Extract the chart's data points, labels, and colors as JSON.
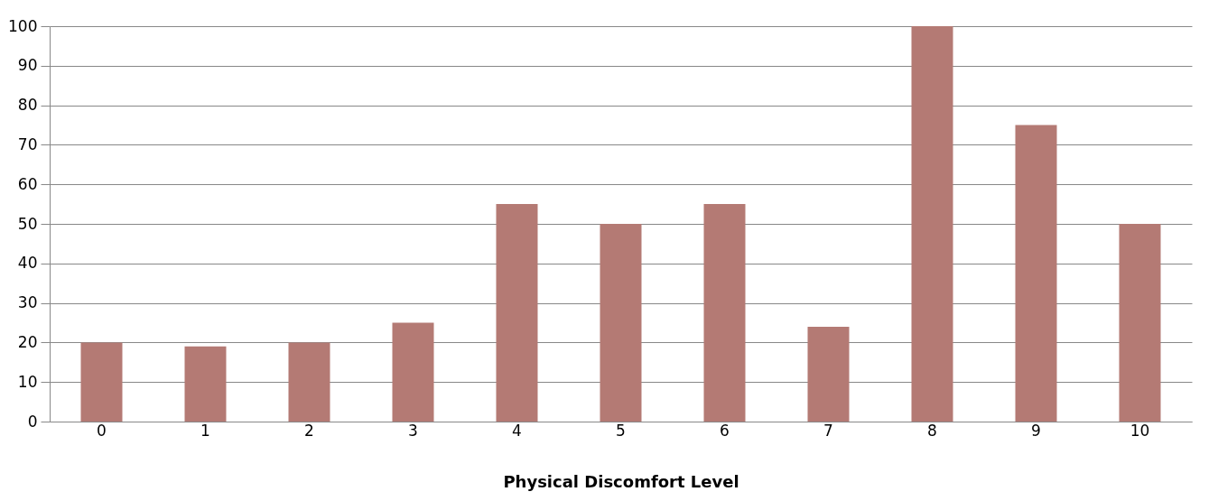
{
  "chart_data": {
    "type": "bar",
    "xlabel": "Physical Discomfort Level",
    "categories": [
      "0",
      "1",
      "2",
      "3",
      "4",
      "5",
      "6",
      "7",
      "8",
      "9",
      "10"
    ],
    "values": [
      20,
      19,
      20,
      25,
      55,
      50,
      55,
      24,
      100,
      75,
      50
    ],
    "color": "#b47a74",
    "ylim": [
      0,
      100
    ],
    "yticks": [
      0,
      10,
      20,
      30,
      40,
      50,
      60,
      70,
      80,
      90,
      100
    ],
    "grid": "y"
  }
}
